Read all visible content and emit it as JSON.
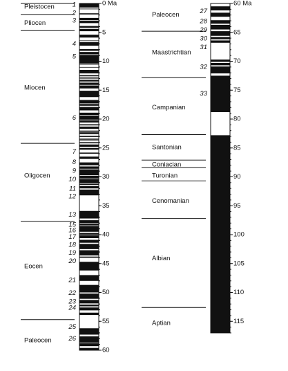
{
  "left": {
    "range": [
      0,
      60
    ],
    "ticks": [
      {
        "value": 0,
        "label": "0 Ma"
      },
      5,
      10,
      15,
      20,
      25,
      30,
      35,
      40,
      45,
      50,
      55,
      60
    ],
    "chrons": [
      {
        "label": "1",
        "age": 0.24
      },
      {
        "label": "2",
        "age": 1.68
      },
      {
        "label": "3",
        "age": 3.0
      },
      {
        "label": "4",
        "age": 7.0
      },
      {
        "label": "5",
        "age": 9.2
      },
      {
        "label": "6",
        "age": 19.8
      },
      {
        "label": "7",
        "age": 25.7
      },
      {
        "label": "8",
        "age": 27.5
      },
      {
        "label": "9",
        "age": 29.0
      },
      {
        "label": "10",
        "age": 30.5
      },
      {
        "label": "11",
        "age": 32.1
      },
      {
        "label": "12",
        "age": 33.4
      },
      {
        "label": "13",
        "age": 36.6
      },
      {
        "label": "15",
        "age": 38.3
      },
      {
        "label": "16",
        "age": 39.3
      },
      {
        "label": "17",
        "age": 40.4
      },
      {
        "label": "18",
        "age": 41.8
      },
      {
        "label": "19",
        "age": 43.2
      },
      {
        "label": "20",
        "age": 44.6
      },
      {
        "label": "21",
        "age": 47.9
      },
      {
        "label": "22",
        "age": 50.1
      },
      {
        "label": "23",
        "age": 51.6
      },
      {
        "label": "24",
        "age": 52.7
      },
      {
        "label": "25",
        "age": 56.0
      },
      {
        "label": "26",
        "age": 58.0
      }
    ],
    "units": [
      {
        "label": "Pleistocen",
        "age": 0.6
      },
      {
        "label": "Pliocen",
        "age": 3.4
      },
      {
        "label": "Miocen",
        "age": 14.6
      },
      {
        "label": "Oligocen",
        "age": 29.8
      },
      {
        "label": "Eocen",
        "age": 45.5
      },
      {
        "label": "Paleocen",
        "age": 58.3
      }
    ],
    "boundaries": [
      0,
      1.9,
      4.7,
      24.2,
      37.7,
      54.7
    ],
    "black_intervals": [
      [
        0,
        0.7
      ],
      [
        0.9,
        1.0
      ],
      [
        1.7,
        1.9
      ],
      [
        2.5,
        2.9
      ],
      [
        3.0,
        3.4
      ],
      [
        3.9,
        4.2
      ],
      [
        4.4,
        4.8
      ],
      [
        5.4,
        5.9
      ],
      [
        6.4,
        6.5
      ],
      [
        6.7,
        7.3
      ],
      [
        7.9,
        8.2
      ],
      [
        8.4,
        8.8
      ],
      [
        8.9,
        10.4
      ],
      [
        10.5,
        10.6
      ],
      [
        11.0,
        11.1
      ],
      [
        11.5,
        12.1
      ],
      [
        12.4,
        12.6
      ],
      [
        12.8,
        13.0
      ],
      [
        13.2,
        13.5
      ],
      [
        13.7,
        14.1
      ],
      [
        14.2,
        14.7
      ],
      [
        15.1,
        16.2
      ],
      [
        16.7,
        17.3
      ],
      [
        17.4,
        17.7
      ],
      [
        17.9,
        18.5
      ],
      [
        18.9,
        19.3
      ],
      [
        19.4,
        20.1
      ],
      [
        20.2,
        20.6
      ],
      [
        20.9,
        21.1
      ],
      [
        21.3,
        21.7
      ],
      [
        22.0,
        22.2
      ],
      [
        22.3,
        22.6
      ],
      [
        22.9,
        23.1
      ],
      [
        23.3,
        23.4
      ],
      [
        23.5,
        23.6
      ],
      [
        23.7,
        23.8
      ],
      [
        24.0,
        24.2
      ],
      [
        24.4,
        24.8
      ],
      [
        25.0,
        25.3
      ],
      [
        25.8,
        26.0
      ],
      [
        26.5,
        26.9
      ],
      [
        27.5,
        28.0
      ],
      [
        28.2,
        28.6
      ],
      [
        28.7,
        29.7
      ],
      [
        29.8,
        30.3
      ],
      [
        30.4,
        31.1
      ],
      [
        31.2,
        31.4
      ],
      [
        31.6,
        32.0
      ],
      [
        32.2,
        33.2
      ],
      [
        35.9,
        37.2
      ],
      [
        37.5,
        38.0
      ],
      [
        38.1,
        38.4
      ],
      [
        38.5,
        39.5
      ],
      [
        39.7,
        40.0
      ],
      [
        40.1,
        40.6
      ],
      [
        40.9,
        41.4
      ],
      [
        41.6,
        42.5
      ],
      [
        42.7,
        43.6
      ],
      [
        43.8,
        44.0
      ],
      [
        44.7,
        46.2
      ],
      [
        47.0,
        48.0
      ],
      [
        48.7,
        50.0
      ],
      [
        50.2,
        51.1
      ],
      [
        51.3,
        51.9
      ],
      [
        52.1,
        52.4
      ],
      [
        52.6,
        53.1
      ],
      [
        53.5,
        53.9
      ],
      [
        56.2,
        57.3
      ],
      [
        57.6,
        58.7
      ],
      [
        58.8,
        59.3
      ],
      [
        59.6,
        60.0
      ]
    ]
  },
  "right": {
    "range": [
      60,
      117
    ],
    "ticks": [
      {
        "value": 60,
        "label": "60 Ma"
      },
      65,
      70,
      75,
      80,
      85,
      90,
      95,
      100,
      105,
      110,
      115
    ],
    "chrons": [
      {
        "label": "27",
        "age": 61.4
      },
      {
        "label": "28",
        "age": 63.1
      },
      {
        "label": "29",
        "age": 64.6
      },
      {
        "label": "30",
        "age": 66.1
      },
      {
        "label": "31",
        "age": 67.6
      },
      {
        "label": "32",
        "age": 71.0
      },
      {
        "label": "33",
        "age": 75.6
      }
    ],
    "units": [
      {
        "label": "Paleocen",
        "age": 62.0
      },
      {
        "label": "Maastrichtian",
        "age": 68.5
      },
      {
        "label": "Campanian",
        "age": 78.0
      },
      {
        "label": "Santonian",
        "age": 84.9
      },
      {
        "label": "Coniacian",
        "age": 87.9
      },
      {
        "label": "Turonian",
        "age": 89.8
      },
      {
        "label": "Cenomanian",
        "age": 94.2
      },
      {
        "label": "Albian",
        "age": 104.1
      },
      {
        "label": "Aptian",
        "age": 115.3
      }
    ],
    "boundaries": [
      64.8,
      72.8,
      82.7,
      87.1,
      88.4,
      90.7,
      97.2,
      112.6
    ],
    "black_intervals": [
      [
        60.5,
        61.2
      ],
      [
        61.6,
        62.3
      ],
      [
        62.9,
        63.5
      ],
      [
        63.7,
        64.5
      ],
      [
        64.8,
        65.6
      ],
      [
        65.8,
        66.2
      ],
      [
        66.4,
        66.8
      ],
      [
        69.7,
        70.1
      ],
      [
        70.3,
        70.7
      ],
      [
        70.9,
        72.1
      ],
      [
        72.5,
        78.8
      ],
      [
        82.8,
        117
      ]
    ]
  }
}
